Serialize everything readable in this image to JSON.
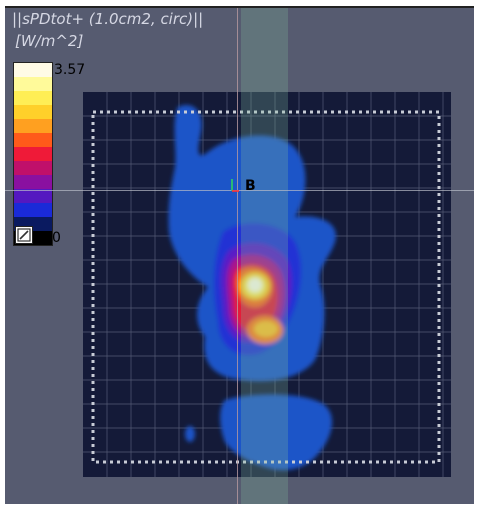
{
  "view": {
    "title": "||sPDtot+ (1.0cm2, circ)||",
    "unit": "[W/m^2]",
    "marker_label": "B"
  },
  "legend": {
    "max_label": "3.57",
    "min_label": "0",
    "colors": [
      "#fffbe6",
      "#fffa9a",
      "#ffee55",
      "#ffd02a",
      "#ffa020",
      "#ff5a1a",
      "#ef1a38",
      "#c0106a",
      "#8a10a0",
      "#5418c0",
      "#1a2ad8",
      "#0a1a60",
      "#000000"
    ]
  },
  "icons": {
    "reset": "colorbar-reset-icon",
    "marker": "probe-marker-icon"
  },
  "colors": {
    "background": "#565b70",
    "plot_background": "#141a38",
    "grid": "#8a90a8",
    "crosshair": "#b8bcc8",
    "highlight_band": "#7fb89a"
  }
}
